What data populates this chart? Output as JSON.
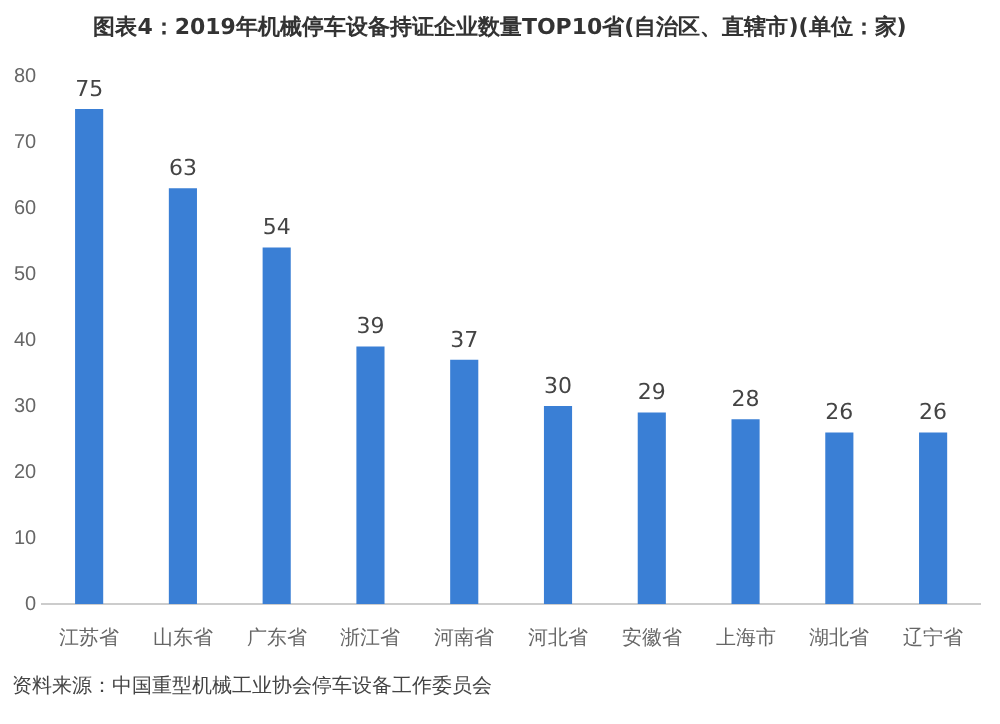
{
  "chart_data": {
    "type": "bar",
    "title": "图表4：2019年机械停车设备持证企业数量TOP10省(自治区、直辖市)(单位：家)",
    "categories": [
      "江苏省",
      "山东省",
      "广东省",
      "浙江省",
      "河南省",
      "河北省",
      "安徽省",
      "上海市",
      "湖北省",
      "辽宁省"
    ],
    "values": [
      75,
      63,
      54,
      39,
      37,
      30,
      29,
      28,
      26,
      26
    ],
    "color": "#3a7fd5",
    "ylim": [
      0,
      80
    ],
    "yticks": [
      0,
      10,
      20,
      30,
      40,
      50,
      60,
      70,
      80
    ],
    "grid": false,
    "data_labels": true,
    "annotations": [
      "资料来源：中国重型机械工业协会停车设备工作委员会"
    ]
  }
}
